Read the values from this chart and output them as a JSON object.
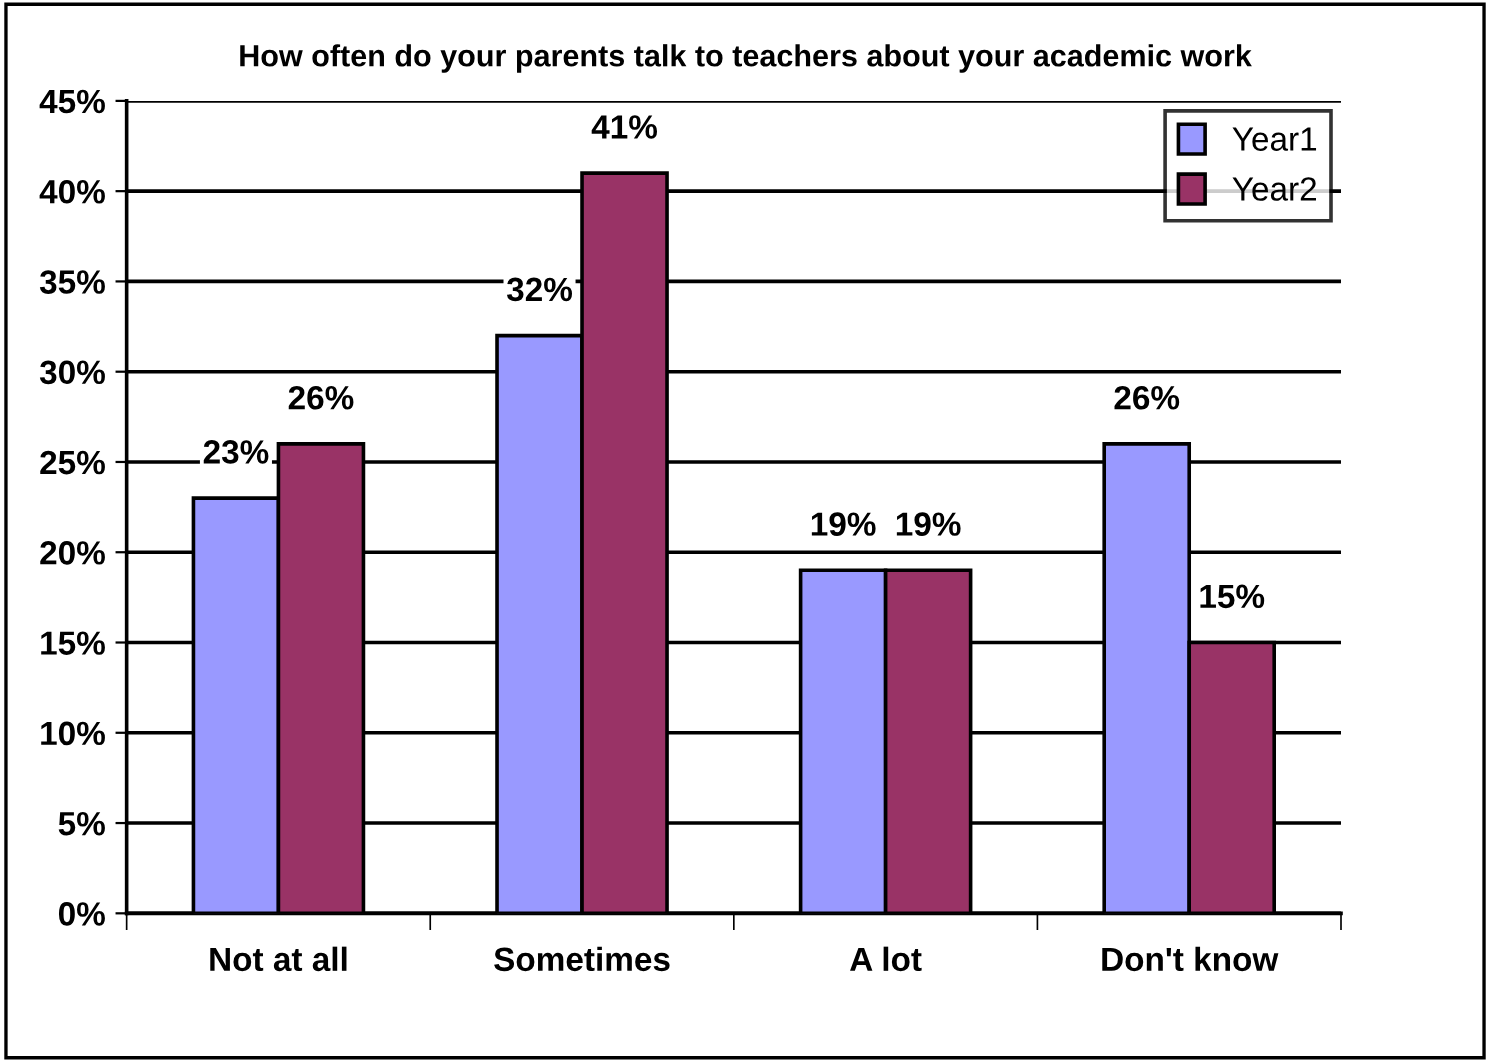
{
  "chart_data": {
    "type": "bar",
    "title": "How often do your parents talk to teachers about your academic work",
    "categories": [
      "Not at all",
      "Sometimes",
      "A lot",
      "Don't know"
    ],
    "series": [
      {
        "name": "Year1",
        "color": "#9999ff",
        "values": [
          23,
          32,
          19,
          26
        ],
        "value_labels": [
          "23%",
          "32%",
          "19%",
          "26%"
        ]
      },
      {
        "name": "Year2",
        "color": "#993366",
        "values": [
          26,
          41,
          19,
          15
        ],
        "value_labels": [
          "26%",
          "41%",
          "19%",
          "15%"
        ]
      }
    ],
    "ylim": [
      0,
      45
    ],
    "yticks": [
      {
        "value": 0,
        "label": "0%"
      },
      {
        "value": 5,
        "label": "5%"
      },
      {
        "value": 10,
        "label": "10%"
      },
      {
        "value": 15,
        "label": "15%"
      },
      {
        "value": 20,
        "label": "20%"
      },
      {
        "value": 25,
        "label": "25%"
      },
      {
        "value": 30,
        "label": "30%"
      },
      {
        "value": 35,
        "label": "35%"
      },
      {
        "value": 40,
        "label": "40%"
      },
      {
        "value": 45,
        "label": "45%"
      }
    ],
    "grid": "y",
    "legend": "top right"
  }
}
